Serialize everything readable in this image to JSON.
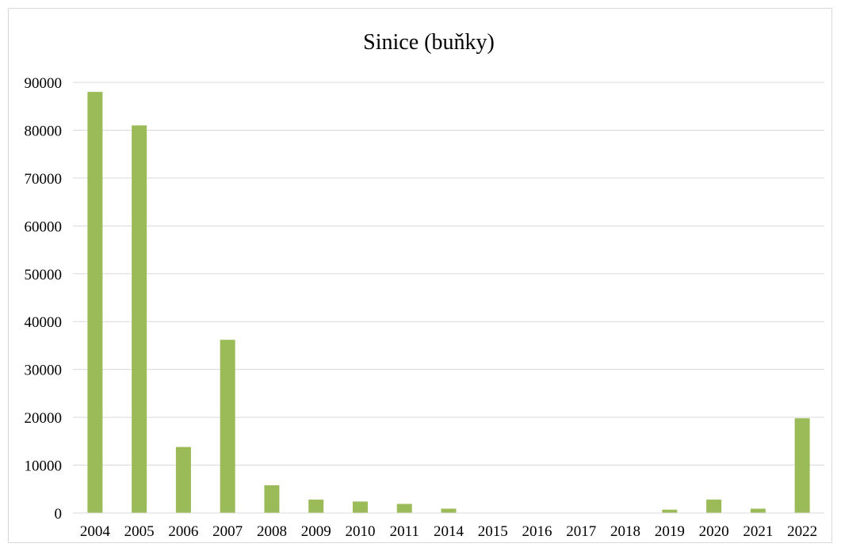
{
  "chart_data": {
    "type": "bar",
    "title": "Sinice (buňky)",
    "xlabel": "",
    "ylabel": "",
    "categories": [
      "2004",
      "2005",
      "2006",
      "2007",
      "2008",
      "2009",
      "2010",
      "2011",
      "2014",
      "2015",
      "2016",
      "2017",
      "2018",
      "2019",
      "2020",
      "2021",
      "2022"
    ],
    "values": [
      88000,
      81000,
      13800,
      36200,
      5800,
      2800,
      2400,
      1900,
      900,
      0,
      0,
      0,
      0,
      700,
      2800,
      900,
      19800
    ],
    "ylim": [
      0,
      90000
    ],
    "yticks": [
      "0",
      "10000",
      "20000",
      "30000",
      "40000",
      "50000",
      "60000",
      "70000",
      "80000",
      "90000"
    ],
    "grid": true,
    "legend": "none",
    "bar_color": "#9bbb59"
  }
}
